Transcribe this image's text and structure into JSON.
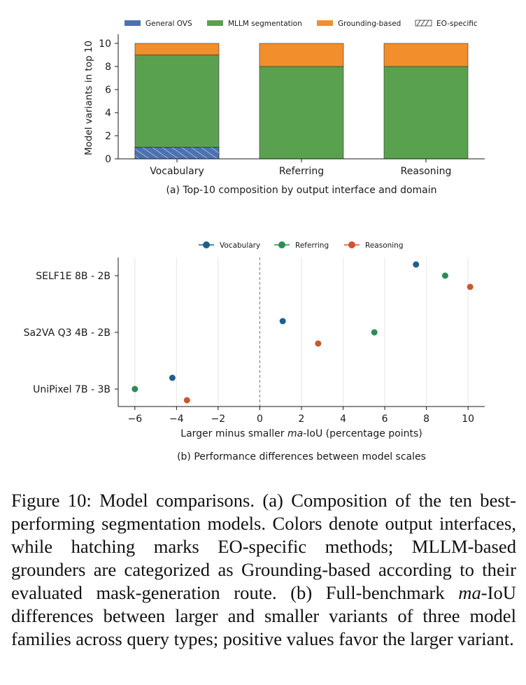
{
  "chart_data": [
    {
      "type": "bar",
      "stacked": true,
      "caption": "(a) Top-10 composition by output interface and domain",
      "ylabel": "Model variants in top 10",
      "xlabel": "",
      "categories": [
        "Vocabulary",
        "Referring",
        "Reasoning"
      ],
      "ylim": [
        0,
        10
      ],
      "yticks": [
        0,
        2,
        4,
        6,
        8,
        10
      ],
      "series": [
        {
          "name": "General OVS",
          "color": "#4c72b0",
          "values": [
            1,
            0,
            0
          ]
        },
        {
          "name": "MLLM segmentation",
          "color": "#59a14f",
          "values": [
            8,
            8,
            8
          ]
        },
        {
          "name": "Grounding-based",
          "color": "#f28e2b",
          "values": [
            1,
            2,
            2
          ]
        }
      ],
      "hatched": {
        "name": "EO-specific",
        "values": [
          1,
          0,
          0
        ]
      },
      "legend_position": "top"
    },
    {
      "type": "scatter",
      "caption": "(b) Performance differences between model scales",
      "xlabel_pre": "Larger minus smaller ",
      "xlabel_italic": "ma",
      "xlabel_post": "-IoU (percentage points)",
      "xlim": [
        -6.8,
        10.8
      ],
      "xticks": [
        -6,
        -4,
        -2,
        0,
        2,
        4,
        6,
        8,
        10
      ],
      "xtick_labels": [
        "−6",
        "−4",
        "−2",
        "0",
        "2",
        "4",
        "6",
        "8",
        "10"
      ],
      "categories": [
        "SELF1E 8B - 2B",
        "Sa2VA Q3 4B - 2B",
        "UniPixel 7B - 3B"
      ],
      "series": [
        {
          "name": "Vocabulary",
          "color": "#1f5f8b",
          "values": [
            7.5,
            1.1,
            -4.2
          ]
        },
        {
          "name": "Referring",
          "color": "#2e8b57",
          "values": [
            8.9,
            5.5,
            -6.0
          ]
        },
        {
          "name": "Reasoning",
          "color": "#c8582e",
          "values": [
            10.1,
            2.8,
            -3.5
          ]
        }
      ],
      "reference_line": 0,
      "grid": "vertical",
      "legend_position": "top"
    }
  ],
  "caption": {
    "label": "Figure 10:",
    "pre": " Model comparisons.  (a) Composition of the ten best-performing segmentation models. Colors denote output interfaces, while hatching marks EO-specific methods; MLLM-based grounders are categorized as Grounding-based according to their evaluated mask-generation route. (b) Full-benchmark ",
    "math": "ma",
    "post": "-IoU differences between larger and smaller variants of three model families across query types; positive values favor the larger variant."
  }
}
